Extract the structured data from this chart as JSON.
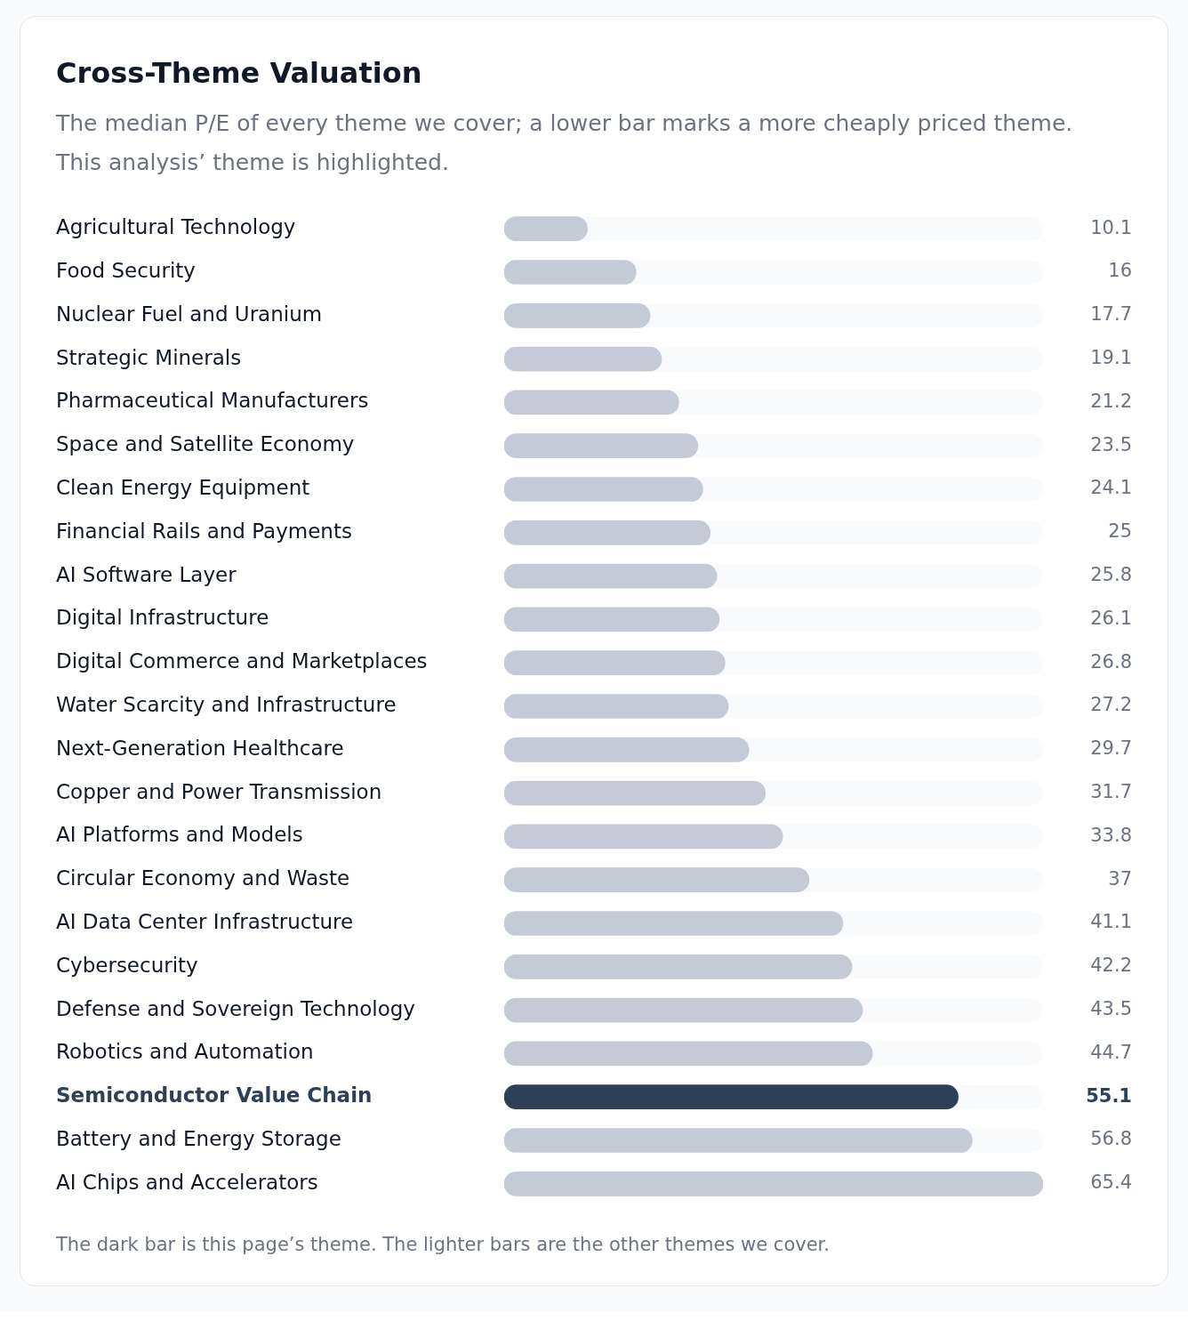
{
  "chart_data": {
    "type": "bar",
    "orientation": "horizontal",
    "title": "Cross-Theme Valuation",
    "subtitle": "The median P/E of every theme we cover; a lower bar marks a more cheaply priced theme. This analysis’ theme is highlighted.",
    "categories": [
      "Agricultural Technology",
      "Food Security",
      "Nuclear Fuel and Uranium",
      "Strategic Minerals",
      "Pharmaceutical Manufacturers",
      "Space and Satellite Economy",
      "Clean Energy Equipment",
      "Financial Rails and Payments",
      "AI Software Layer",
      "Digital Infrastructure",
      "Digital Commerce and Marketplaces",
      "Water Scarcity and Infrastructure",
      "Next-Generation Healthcare",
      "Copper and Power Transmission",
      "AI Platforms and Models",
      "Circular Economy and Waste",
      "AI Data Center Infrastructure",
      "Cybersecurity",
      "Defense and Sovereign Technology",
      "Robotics and Automation",
      "Semiconductor Value Chain",
      "Battery and Energy Storage",
      "AI Chips and Accelerators"
    ],
    "values": [
      10.1,
      16,
      17.7,
      19.1,
      21.2,
      23.5,
      24.1,
      25,
      25.8,
      26.1,
      26.8,
      27.2,
      29.7,
      31.7,
      33.8,
      37,
      41.1,
      42.2,
      43.5,
      44.7,
      55.1,
      56.8,
      65.4
    ],
    "colors": [
      "#c4cad6",
      "#c4cad6",
      "#c4cad6",
      "#c4cad6",
      "#c4cad6",
      "#c4cad6",
      "#c4cad6",
      "#c4cad6",
      "#c4cad6",
      "#c4cad6",
      "#c4cad6",
      "#c4cad6",
      "#c4cad6",
      "#c4cad6",
      "#c4cad6",
      "#c4cad6",
      "#c4cad6",
      "#c4cad6",
      "#c4cad6",
      "#c4cad6",
      "#2e4057",
      "#c4cad6",
      "#c4cad6"
    ],
    "xlim": [
      0,
      65.4
    ],
    "data_labels": true,
    "grid": false,
    "legend": false,
    "tick_labels": "y",
    "annotations": [
      "The dark bar is this page’s theme. The lighter bars are the other themes we cover."
    ]
  }
}
